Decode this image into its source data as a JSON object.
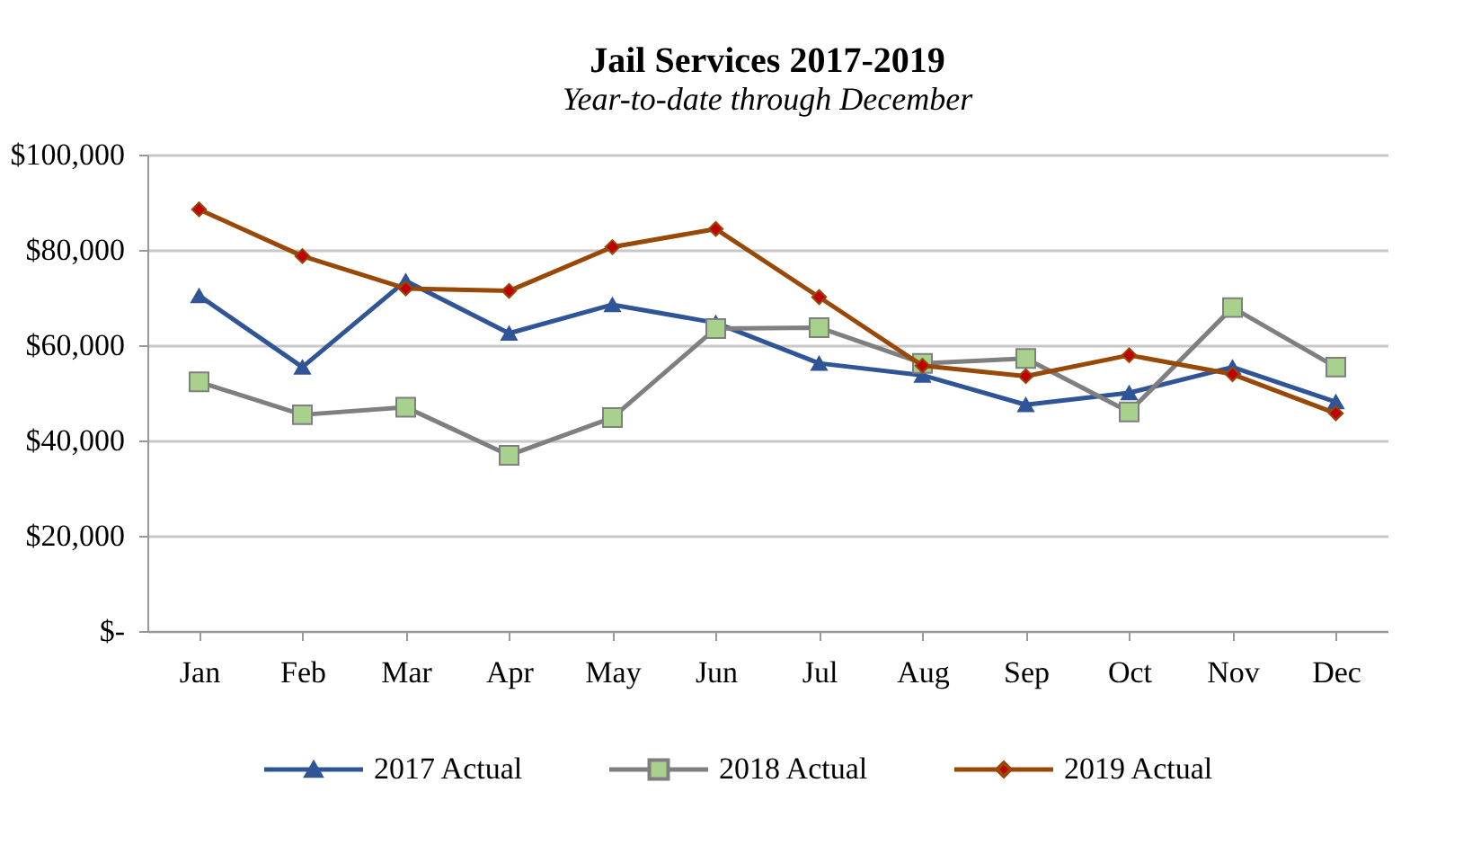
{
  "chart_data": {
    "type": "line",
    "title": "Jail Services 2017-2019",
    "subtitle": "Year-to-date through December",
    "categories": [
      "Jan",
      "Feb",
      "Mar",
      "Apr",
      "May",
      "Jun",
      "Jul",
      "Aug",
      "Sep",
      "Oct",
      "Nov",
      "Dec"
    ],
    "series": [
      {
        "name": "2017 Actual",
        "color": "#2f5597",
        "marker": "triangle",
        "values": [
          70400,
          55400,
          73500,
          62500,
          68500,
          64700,
          56200,
          53700,
          47500,
          50000,
          55400,
          48100
        ]
      },
      {
        "name": "2018 Actual",
        "color": "#7f7f7f",
        "marker": "square",
        "colors": [
          "#a9d18e",
          "#a9d18e",
          "#a9d18e",
          "#a9d18e",
          "#a9d18e",
          "#a9d18e",
          "#a9d18e",
          "#a9d18e",
          "#a9d18e",
          "#a9d18e",
          "#a9d18e",
          "#a9d18e"
        ],
        "values": [
          52300,
          45400,
          47000,
          36900,
          44800,
          63500,
          63700,
          56200,
          57200,
          46000,
          67900,
          55400
        ]
      },
      {
        "name": "2019 Actual",
        "color": "#984807",
        "marker": "diamond",
        "colors": [
          "#c00000",
          "#c00000",
          "#c00000",
          "#c00000",
          "#c00000",
          "#c00000",
          "#c00000",
          "#c00000",
          "#c00000",
          "#c00000",
          "#c00000",
          "#c00000"
        ],
        "values": [
          88500,
          78700,
          71900,
          71400,
          80600,
          84400,
          70100,
          55700,
          53500,
          57900,
          53900,
          45700
        ]
      }
    ],
    "ylim": [
      0,
      100000
    ],
    "yticks": [
      {
        "value": 0,
        "label": "$-"
      },
      {
        "value": 20000,
        "label": "$20,000"
      },
      {
        "value": 40000,
        "label": "$40,000"
      },
      {
        "value": 60000,
        "label": "$60,000"
      },
      {
        "value": 80000,
        "label": "$80,000"
      },
      {
        "value": 100000,
        "label": "$100,000"
      }
    ],
    "grid": "y",
    "legend": "bottom"
  }
}
